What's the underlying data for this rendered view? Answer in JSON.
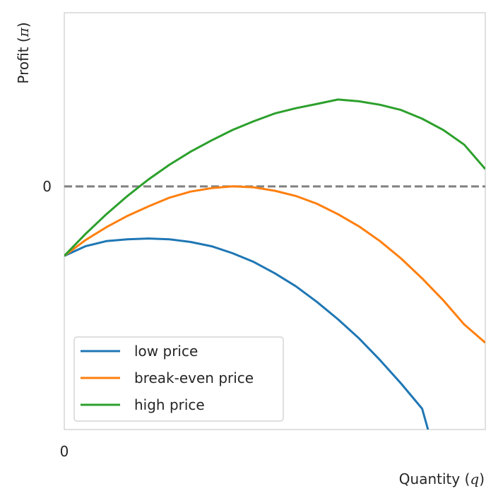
{
  "chart_data": {
    "type": "line",
    "title": "",
    "xlabel": "Quantity ($q$)",
    "ylabel": "Profit ($\\pi$)",
    "xlim": [
      0,
      5
    ],
    "ylim": [
      -2.8,
      2
    ],
    "x_ticks": [
      "0"
    ],
    "y_ticks": [
      "0"
    ],
    "grid": false,
    "legend_placement": "lower-left",
    "reference_line": {
      "y": 0,
      "style": "dashed",
      "color": "#808080"
    },
    "series": [
      {
        "name": "low price",
        "color": "#1f77b4",
        "x": [
          0,
          0.25,
          0.5,
          0.75,
          1.0,
          1.25,
          1.5,
          1.75,
          2.0,
          2.25,
          2.5,
          2.75,
          3.0,
          3.25,
          3.5,
          3.75,
          4.0,
          4.25,
          4.32
        ],
        "y": [
          -0.8,
          -0.69,
          -0.63,
          -0.61,
          -0.6,
          -0.61,
          -0.64,
          -0.69,
          -0.77,
          -0.87,
          -1.0,
          -1.15,
          -1.33,
          -1.53,
          -1.75,
          -2.0,
          -2.27,
          -2.56,
          -2.8
        ]
      },
      {
        "name": "break-even price",
        "color": "#ff7f0e",
        "x": [
          0,
          0.25,
          0.5,
          0.75,
          1.0,
          1.25,
          1.5,
          1.75,
          2.0,
          2.25,
          2.5,
          2.75,
          3.0,
          3.25,
          3.5,
          3.75,
          4.0,
          4.25,
          4.5,
          4.75,
          5.0
        ],
        "y": [
          -0.8,
          -0.62,
          -0.47,
          -0.34,
          -0.23,
          -0.13,
          -0.06,
          -0.02,
          0.0,
          -0.01,
          -0.05,
          -0.11,
          -0.2,
          -0.32,
          -0.46,
          -0.63,
          -0.83,
          -1.06,
          -1.31,
          -1.59,
          -1.8
        ]
      },
      {
        "name": "high price",
        "color": "#2ca02c",
        "x": [
          0,
          0.25,
          0.5,
          0.75,
          1.0,
          1.25,
          1.5,
          1.75,
          2.0,
          2.25,
          2.5,
          2.75,
          3.0,
          3.25,
          3.5,
          3.75,
          4.0,
          4.25,
          4.5,
          4.75,
          5.0
        ],
        "y": [
          -0.8,
          -0.55,
          -0.32,
          -0.11,
          0.08,
          0.25,
          0.4,
          0.53,
          0.65,
          0.75,
          0.84,
          0.9,
          0.95,
          1.0,
          0.98,
          0.94,
          0.88,
          0.78,
          0.65,
          0.48,
          0.2
        ]
      }
    ]
  }
}
